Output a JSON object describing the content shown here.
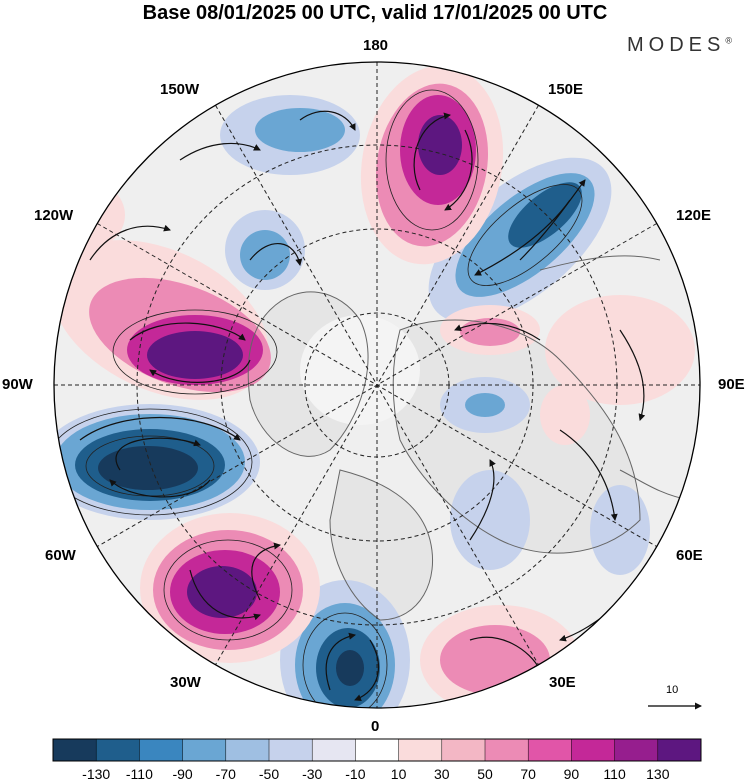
{
  "title": "Base 08/01/2025 00 UTC, valid 17/01/2025 00 UTC",
  "brand": {
    "name": "MODES",
    "mark": "®"
  },
  "longitude_labels": {
    "n180": "180",
    "w150": "150W",
    "e150": "150E",
    "w120": "120W",
    "e120": "120E",
    "w90": "90W",
    "e90": "90E",
    "w60": "60W",
    "e60": "60E",
    "w30": "30W",
    "e30": "30E",
    "s0": "0"
  },
  "reference_vector": {
    "value": "10"
  },
  "colorbar": {
    "labels": [
      "-130",
      "-110",
      "-90",
      "-70",
      "-50",
      "-30",
      "-10",
      "10",
      "30",
      "50",
      "70",
      "90",
      "110",
      "130"
    ],
    "colors": [
      "#173a5c",
      "#1f5e8c",
      "#3a86bf",
      "#6aa6d3",
      "#9fbfe2",
      "#c6d2ec",
      "#e6e6f2",
      "#ffffff",
      "#fadcdc",
      "#f3b7c5",
      "#ec8bb5",
      "#e155a8",
      "#c42898",
      "#961e8e",
      "#5d1780"
    ]
  },
  "map_colors": {
    "land": "#e5e5e5",
    "coast": "#666666",
    "grid": "#222222",
    "neg_light": "#c6d2ec",
    "neg_mid": "#6aa6d3",
    "neg_dark": "#1f5e8c",
    "neg_deep": "#173a5c",
    "pos_light": "#fadcdc",
    "pos_mid": "#ec8bb5",
    "pos_dark": "#c42898",
    "pos_deep": "#5d1780"
  }
}
